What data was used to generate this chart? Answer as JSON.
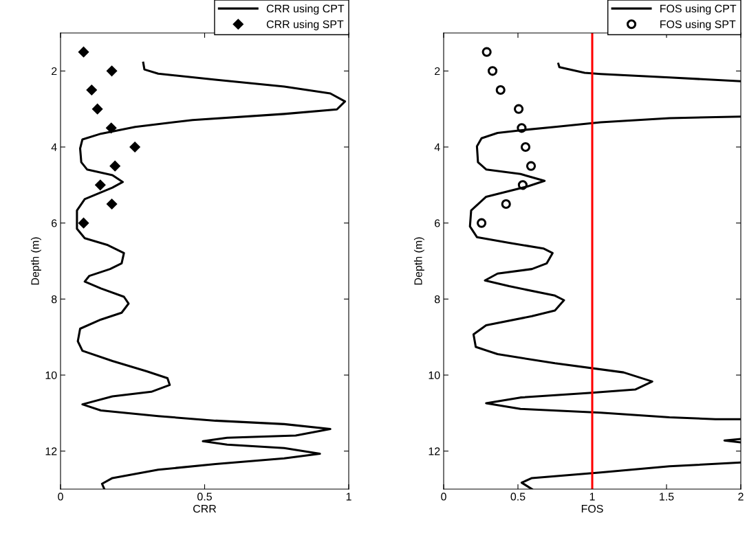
{
  "chart_data": [
    {
      "type": "line",
      "xlabel": "CRR",
      "ylabel": "Depth (m)",
      "xlim": [
        0,
        1
      ],
      "xticks": [
        0,
        0.5,
        1
      ],
      "ylim": [
        13,
        1
      ],
      "yticks": [
        2,
        4,
        6,
        8,
        10,
        12
      ],
      "grid": false,
      "legend": "top right",
      "series": [
        {
          "name": "CRR using CPT",
          "color": "#000000",
          "line_style": "solid",
          "marker": "none",
          "x": [
            0.287,
            0.291,
            0.339,
            0.537,
            0.776,
            0.936,
            0.987,
            0.959,
            0.776,
            0.458,
            0.259,
            0.14,
            0.076,
            0.068,
            0.072,
            0.092,
            0.18,
            0.216,
            0.18,
            0.084,
            0.057,
            0.057,
            0.084,
            0.164,
            0.22,
            0.212,
            0.172,
            0.1,
            0.084,
            0.14,
            0.22,
            0.236,
            0.212,
            0.14,
            0.068,
            0.06,
            0.076,
            0.18,
            0.299,
            0.371,
            0.379,
            0.315,
            0.18,
            0.076,
            0.14,
            0.339,
            0.538,
            0.776,
            0.936,
            0.816,
            0.578,
            0.494,
            0.578,
            0.776,
            0.9,
            0.776,
            0.538,
            0.339,
            0.18,
            0.144,
            0.152
          ],
          "values": [
            1.78,
            1.96,
            2.07,
            2.23,
            2.41,
            2.59,
            2.8,
            3.01,
            3.13,
            3.29,
            3.47,
            3.65,
            3.8,
            4.04,
            4.4,
            4.59,
            4.74,
            4.92,
            5.07,
            5.37,
            5.67,
            6.15,
            6.4,
            6.58,
            6.79,
            7.06,
            7.21,
            7.39,
            7.54,
            7.72,
            7.94,
            8.12,
            8.36,
            8.54,
            8.78,
            9.11,
            9.36,
            9.63,
            9.9,
            10.08,
            10.26,
            10.44,
            10.56,
            10.77,
            10.93,
            11.08,
            11.2,
            11.29,
            11.42,
            11.59,
            11.65,
            11.74,
            11.83,
            11.92,
            12.07,
            12.19,
            12.34,
            12.49,
            12.71,
            12.86,
            13.0
          ]
        },
        {
          "name": "CRR using SPT",
          "type": "scatter",
          "color": "#000000",
          "marker": "diamond",
          "x": [
            0.08,
            0.178,
            0.108,
            0.128,
            0.176,
            0.258,
            0.189,
            0.138,
            0.178,
            0.08
          ],
          "values": [
            1.5,
            2,
            2.5,
            3,
            3.5,
            4,
            4.5,
            5,
            5.5,
            6
          ]
        }
      ]
    },
    {
      "type": "line",
      "xlabel": "FOS",
      "ylabel": "Depth (m)",
      "xlim": [
        0,
        2
      ],
      "xticks": [
        0,
        0.5,
        1,
        1.5,
        2
      ],
      "ylim": [
        13,
        1
      ],
      "yticks": [
        2,
        4,
        6,
        8,
        10,
        12
      ],
      "grid": false,
      "legend": "top right",
      "ref_lines": [
        {
          "axis": "x",
          "value": 1,
          "color": "#ff0000",
          "line_style": "solid"
        }
      ],
      "series": [
        {
          "name": "FOS using CPT",
          "color": "#000000",
          "line_style": "solid",
          "marker": "none",
          "x": [
            0.772,
            0.779,
            0.949,
            1.057,
            1.52,
            2.0,
            null,
            2.0,
            1.52,
            1.057,
            0.749,
            0.517,
            0.363,
            0.255,
            0.224,
            0.231,
            0.286,
            0.517,
            0.679,
            0.563,
            0.286,
            0.185,
            0.177,
            0.224,
            0.44,
            0.671,
            0.733,
            0.694,
            0.594,
            0.363,
            0.278,
            0.44,
            0.749,
            0.81,
            0.749,
            0.594,
            0.286,
            0.201,
            0.216,
            0.363,
            0.749,
            1.211,
            1.404,
            1.289,
            0.98,
            0.517,
            0.286,
            0.517,
            1.057,
            1.52,
            1.829,
            2.0,
            null,
            2.0,
            1.89,
            2.0,
            null,
            2.0,
            1.52,
            1.057,
            0.594,
            0.525,
            0.594
          ],
          "values": [
            1.81,
            1.9,
            2.05,
            2.08,
            2.17,
            2.27,
            null,
            3.2,
            3.24,
            3.35,
            3.47,
            3.56,
            3.63,
            3.77,
            3.98,
            4.4,
            4.59,
            4.71,
            4.89,
            5.04,
            5.31,
            5.67,
            6.09,
            6.37,
            6.52,
            6.67,
            6.79,
            7.06,
            7.21,
            7.33,
            7.51,
            7.66,
            7.91,
            8.03,
            8.3,
            8.45,
            8.69,
            8.93,
            9.26,
            9.45,
            9.69,
            9.93,
            10.17,
            10.38,
            10.47,
            10.59,
            10.74,
            10.89,
            10.99,
            11.11,
            11.16,
            11.16,
            null,
            11.68,
            11.72,
            11.77,
            null,
            12.3,
            12.4,
            12.56,
            12.71,
            12.83,
            13.0
          ]
        },
        {
          "name": "FOS using SPT",
          "type": "scatter",
          "color": "#000000",
          "marker": "circle",
          "x": [
            0.29,
            0.329,
            0.383,
            0.505,
            0.525,
            0.551,
            0.588,
            0.532,
            0.42,
            0.255
          ],
          "values": [
            1.5,
            2,
            2.5,
            3,
            3.5,
            4,
            4.5,
            5,
            5.5,
            6
          ]
        }
      ]
    }
  ]
}
